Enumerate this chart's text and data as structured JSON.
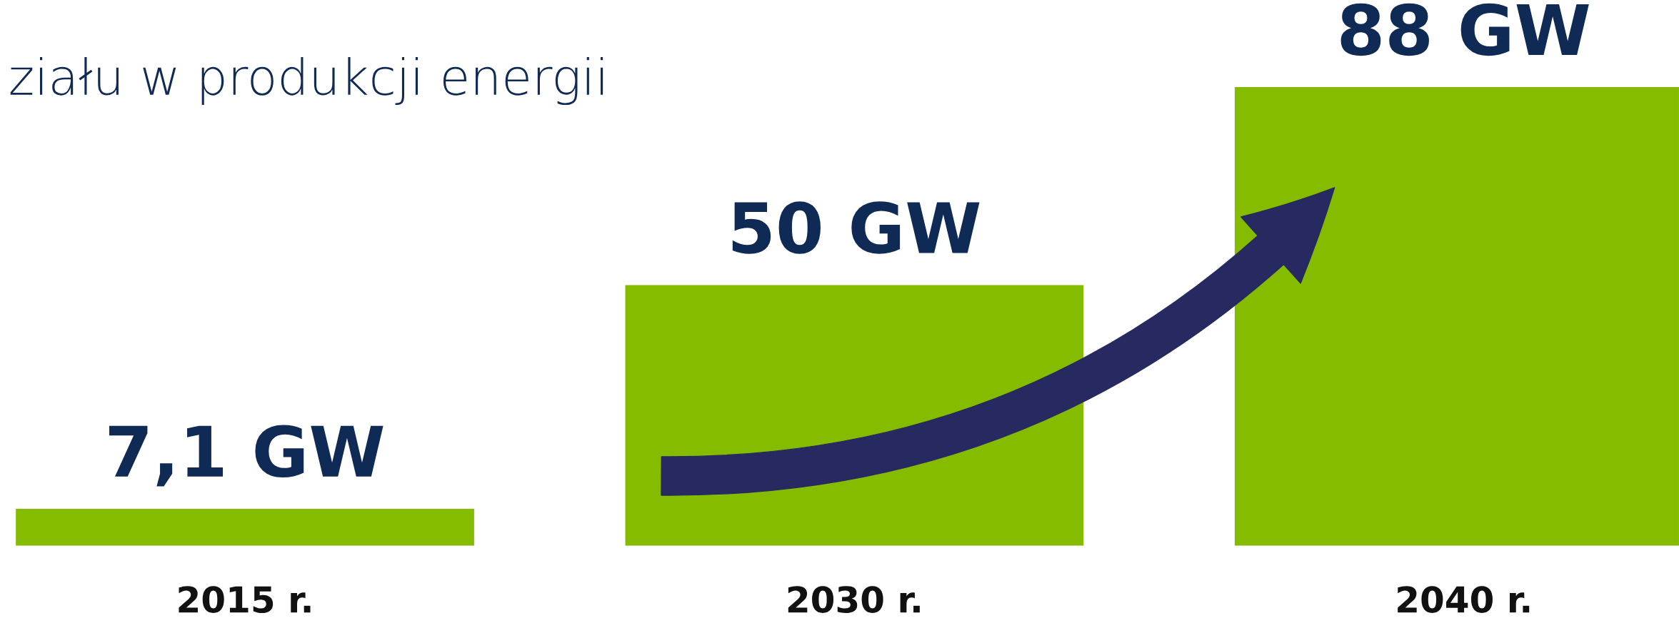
{
  "chart_data": {
    "type": "bar",
    "title": "ziału w produkcji energii",
    "categories": [
      "2015 r.",
      "2030 r.",
      "2040 r."
    ],
    "values": [
      7.1,
      50,
      88
    ],
    "value_labels": [
      "7,1 GW",
      "50 GW",
      "88 GW"
    ],
    "color": "#86bc00",
    "tick_labels": "x",
    "grid": false,
    "legend": false
  }
}
